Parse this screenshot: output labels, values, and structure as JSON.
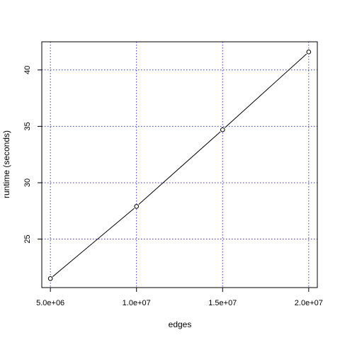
{
  "chart_data": {
    "type": "line",
    "title": "",
    "xlabel": "edges",
    "ylabel": "runtime (seconds)",
    "x": [
      5000000,
      10000000,
      15000000,
      20000000
    ],
    "series": [
      {
        "values": [
          21.5,
          27.9,
          34.7,
          41.6
        ]
      }
    ],
    "xlim": [
      4500000,
      20500000
    ],
    "ylim": [
      20.7,
      42.5
    ],
    "x_ticks": [
      5000000,
      10000000,
      15000000,
      20000000
    ],
    "x_tick_labels": [
      "5.0e+06",
      "1.0e+07",
      "1.5e+07",
      "2.0e+07"
    ],
    "y_ticks": [
      25,
      30,
      35,
      40
    ],
    "y_tick_labels": [
      "25",
      "30",
      "35",
      "40"
    ],
    "grid": true,
    "grid_color": "#0000ff",
    "line_color": "#000000",
    "marker": "open-circle"
  }
}
